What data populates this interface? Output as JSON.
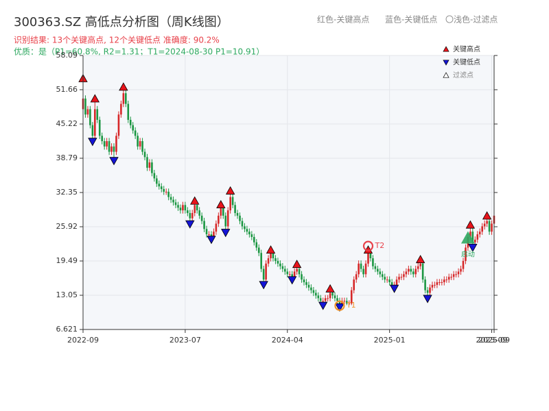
{
  "chart_data": {
    "type": "candlestick",
    "title": "300363.SZ 高低点分析图（周K线图）",
    "header_legend": [
      "红色-关键高点",
      "蓝色-关键低点",
      "〇浅色-过滤点"
    ],
    "result_line": "识别结果: 13个关键高点, 12个关键低点  准确度: 90.2%",
    "quality_line": "优质：是（P1=60.8%, R2=1.31；T1=2024-08-30 P1=10.91）",
    "up_color": "#d62728",
    "down_color": "#1a9641",
    "open": [
      48,
      50,
      47,
      48,
      45,
      43,
      48,
      46,
      43,
      42,
      41,
      42,
      40,
      41,
      40,
      43,
      47,
      49,
      51,
      49,
      46,
      45,
      44,
      43,
      41,
      42,
      40,
      39,
      37,
      38,
      36,
      35,
      34,
      33.5,
      33,
      32.5,
      32.5,
      31.5,
      31,
      30.5,
      30,
      29.5,
      29,
      30,
      29,
      28.5,
      27.5,
      28.5,
      30,
      29,
      28,
      27,
      25.5,
      24.5,
      24.5,
      24,
      25,
      26.5,
      28,
      29.5,
      28,
      26,
      29,
      31.5,
      30,
      28.5,
      28,
      27,
      26,
      25.5,
      25,
      24.5,
      24,
      23,
      22,
      21,
      18,
      16,
      19,
      20,
      21,
      20,
      19.5,
      19,
      18.5,
      18,
      17.5,
      17,
      17,
      16.5,
      17.5,
      18,
      17,
      16,
      15.5,
      15,
      14.5,
      14,
      13.5,
      13,
      12.5,
      12,
      12,
      12.5,
      12.5,
      13.5,
      13,
      12.5,
      12,
      11.5,
      12,
      12,
      11.5,
      11.5,
      14,
      16,
      17,
      19,
      18,
      17,
      19,
      21,
      20,
      18.5,
      18,
      17.5,
      17,
      16.5,
      16,
      16,
      15.5,
      15,
      15,
      16,
      16.5,
      16.5,
      17,
      17.5,
      18,
      17.5,
      17,
      18,
      18.5,
      19,
      16,
      14,
      13.5,
      14.5,
      15,
      15,
      15.5,
      15.5,
      15.5,
      16,
      16,
      16.5,
      16.5,
      17,
      17,
      17.5,
      18,
      19.5,
      22,
      24,
      25,
      23,
      23.5,
      24.5,
      25,
      26,
      26.5,
      27,
      25,
      26.5
    ],
    "close": [
      50,
      47,
      48,
      45,
      43,
      48,
      46,
      43,
      42,
      41,
      42,
      40,
      41,
      40,
      43,
      47,
      49,
      51,
      49,
      46,
      45,
      44,
      43,
      41,
      42,
      40,
      39,
      37,
      38,
      36,
      35,
      34,
      33.5,
      33,
      32.5,
      32.5,
      31.5,
      31,
      30.5,
      30,
      29.5,
      29,
      30,
      29,
      28.5,
      27.5,
      28.5,
      30,
      29,
      28,
      27,
      25.5,
      24.5,
      24.5,
      24,
      25,
      26.5,
      28,
      29.5,
      28,
      26,
      29,
      31.5,
      30,
      28.5,
      28,
      27,
      26,
      25.5,
      25,
      24.5,
      24,
      23,
      22,
      21,
      18,
      16,
      19,
      20,
      21,
      20,
      19.5,
      19,
      18.5,
      18,
      17.5,
      17,
      17,
      16.5,
      17.5,
      18,
      17,
      16,
      15.5,
      15,
      14.5,
      14,
      13.5,
      13,
      12.5,
      12,
      12,
      12.5,
      12.5,
      13.5,
      13,
      12.5,
      12,
      11.5,
      12,
      12,
      11.5,
      11.5,
      14,
      16,
      17,
      19,
      18,
      17,
      19,
      21,
      20,
      18.5,
      18,
      17.5,
      17,
      16.5,
      16,
      16,
      15.5,
      15,
      15,
      16,
      16.5,
      16.5,
      17,
      17.5,
      18,
      17.5,
      17,
      18,
      18.5,
      19,
      16,
      14,
      13.5,
      14.5,
      15,
      15,
      15.5,
      15.5,
      15.5,
      16,
      16,
      16.5,
      16.5,
      17,
      17,
      17.5,
      18,
      19.5,
      22,
      24,
      25,
      23,
      23.5,
      24.5,
      25,
      26,
      26.5,
      27,
      25,
      26.5,
      28
    ],
    "high": [
      53.5,
      50.6,
      48.6,
      48.6,
      45.6,
      49.7,
      48.6,
      46.6,
      43.6,
      42.6,
      42.6,
      42.6,
      41.6,
      41.6,
      43.6,
      47.6,
      49.6,
      51.9,
      51.6,
      49.6,
      46.6,
      45.6,
      44.6,
      43.6,
      42.6,
      42.6,
      40.6,
      39.6,
      38.6,
      38.6,
      36.6,
      35.6,
      34.6,
      34.1,
      33.6,
      33.1,
      33.1,
      32.1,
      31.6,
      31.1,
      30.6,
      30.1,
      30.6,
      30.6,
      29.6,
      29.1,
      29.1,
      30.5,
      30.6,
      29.6,
      28.6,
      27.6,
      26.1,
      25.1,
      25.1,
      25.6,
      27.1,
      28.6,
      29.8,
      29.7,
      28.6,
      29.6,
      32.4,
      32.1,
      30.6,
      29.1,
      28.6,
      27.6,
      26.6,
      26.1,
      25.6,
      25.1,
      24.6,
      23.6,
      22.6,
      21.6,
      18.6,
      19.6,
      20.6,
      21.3,
      21.2,
      20.6,
      20.1,
      19.6,
      19.1,
      18.6,
      18.1,
      17.6,
      17.6,
      18.1,
      18.6,
      18.5,
      17.6,
      16.6,
      16.1,
      15.6,
      15.1,
      14.6,
      14.1,
      13.6,
      13.1,
      12.6,
      13.1,
      13.1,
      14.0,
      13.9,
      13.6,
      13.1,
      12.6,
      12.6,
      12.6,
      12.6,
      12.1,
      14.6,
      16.6,
      17.6,
      19.6,
      19.6,
      18.6,
      19.6,
      21.3,
      21.2,
      20.6,
      19.1,
      18.6,
      18.1,
      17.6,
      17.1,
      16.6,
      16.6,
      16.1,
      15.6,
      16.6,
      17.1,
      17.1,
      17.6,
      18.1,
      18.6,
      18.6,
      18.1,
      18.6,
      19.1,
      19.5,
      19.4,
      16.6,
      14.6,
      15.1,
      15.6,
      15.6,
      16.1,
      16.1,
      16.1,
      16.6,
      16.6,
      17.1,
      17.1,
      17.6,
      17.6,
      18.1,
      18.6,
      20.1,
      22.6,
      24.6,
      26.0,
      25.6,
      24.1,
      25.1,
      25.6,
      26.6,
      27.1,
      27.7,
      27.6,
      27.1,
      28.6
    ],
    "low": [
      47.4,
      46.4,
      46.4,
      44.4,
      42.2,
      42.4,
      45.4,
      42.4,
      41.4,
      40.4,
      40.4,
      39.4,
      39.4,
      38.6,
      39.4,
      42.4,
      46.4,
      48.4,
      48.4,
      45.4,
      44.4,
      43.4,
      42.4,
      40.4,
      40.4,
      39.4,
      38.4,
      36.4,
      36.4,
      35.4,
      34.4,
      33.4,
      32.9,
      32.4,
      31.9,
      31.9,
      30.9,
      30.4,
      29.9,
      29.4,
      28.9,
      28.4,
      28.4,
      28.4,
      27.9,
      26.7,
      26.9,
      27.9,
      28.4,
      27.4,
      26.4,
      24.9,
      23.9,
      23.9,
      23.8,
      23.9,
      24.4,
      25.9,
      27.4,
      27.4,
      25.1,
      25.4,
      28.4,
      29.4,
      27.9,
      27.4,
      26.4,
      25.4,
      24.9,
      24.4,
      23.9,
      23.4,
      22.4,
      21.4,
      20.4,
      17.4,
      15.3,
      15.4,
      18.4,
      19.4,
      19.4,
      18.9,
      18.4,
      17.9,
      17.4,
      16.9,
      16.4,
      16.4,
      16.2,
      16.3,
      16.9,
      16.4,
      15.4,
      14.9,
      14.4,
      13.9,
      13.4,
      12.9,
      12.4,
      11.9,
      11.5,
      11.4,
      11.5,
      11.9,
      11.9,
      12.4,
      11.9,
      11.4,
      11.1,
      11.2,
      11.4,
      11.2,
      11.2,
      11.2,
      13.4,
      15.4,
      16.4,
      17.4,
      16.4,
      16.4,
      18.4,
      19.4,
      17.9,
      17.4,
      16.9,
      16.4,
      15.9,
      15.4,
      15.4,
      14.9,
      14.7,
      14.6,
      14.7,
      15.4,
      15.9,
      15.9,
      16.4,
      16.9,
      16.9,
      16.4,
      16.4,
      17.4,
      17.9,
      15.4,
      13.4,
      12.7,
      12.9,
      13.9,
      14.4,
      14.4,
      14.9,
      14.9,
      14.9,
      15.4,
      15.4,
      15.9,
      15.9,
      16.4,
      16.4,
      16.9,
      17.4,
      18.9,
      21.4,
      23.4,
      22.3,
      22.4,
      22.9,
      23.9,
      24.4,
      25.4,
      25.9,
      24.4,
      24.4,
      25.9
    ],
    "key_highs": {
      "name": "关键高点",
      "color": "#e8141b",
      "x": [
        0,
        5,
        17,
        47,
        58,
        62,
        79,
        90,
        104,
        120,
        142,
        163,
        170
      ],
      "y": [
        53.5,
        49.7,
        51.9,
        30.5,
        29.8,
        32.4,
        21.3,
        18.6,
        14.0,
        21.3,
        19.5,
        26.0,
        27.7
      ]
    },
    "key_lows": {
      "name": "关键低点",
      "color": "#1414d6",
      "x": [
        4,
        13,
        45,
        54,
        60,
        76,
        88,
        101,
        108,
        131,
        145,
        164
      ],
      "y": [
        42.2,
        38.6,
        26.7,
        23.8,
        25.1,
        15.3,
        16.2,
        11.4,
        11.1,
        14.6,
        12.7,
        22.3
      ]
    },
    "filtered": {
      "name": "过滤点",
      "color": "#ffffff"
    },
    "annotations": [
      {
        "label": "T1",
        "x": 108,
        "y": 11.1,
        "color": "#f0922a"
      },
      {
        "label": "T2",
        "x": 120,
        "y": 22.3,
        "color": "#e8414a"
      },
      {
        "label": "启动",
        "x": 162,
        "y": 23.8,
        "color": "#2ea860"
      }
    ],
    "xlim": [
      0,
      173
    ],
    "xticks": [
      {
        "value": 0,
        "label": "2022-09"
      },
      {
        "value": 43,
        "label": "2023-07"
      },
      {
        "value": 86,
        "label": "2024-04"
      },
      {
        "value": 129,
        "label": "2025-01"
      },
      {
        "value": 172,
        "label": "2025-09"
      },
      {
        "value": 173,
        "label": "2025-09"
      }
    ],
    "ylim": [
      6.621,
      58.09
    ],
    "yticks": [
      6.621,
      13.05,
      19.49,
      25.92,
      32.35,
      38.79,
      45.22,
      51.66,
      58.09
    ],
    "grid": true
  }
}
